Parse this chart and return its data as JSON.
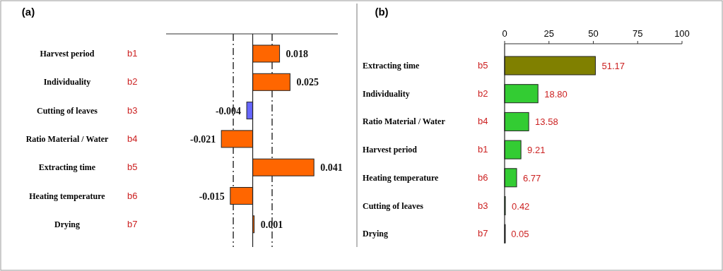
{
  "chart_data": [
    {
      "type": "bar",
      "orientation": "horizontal",
      "title": "(a)",
      "categories": [
        "Harvest period",
        "Individuality",
        "Cutting of leaves",
        "Ratio Material / Water",
        "Extracting time",
        "Heating temperature",
        "Drying"
      ],
      "values": [
        0.018,
        0.025,
        -0.004,
        -0.021,
        0.041,
        -0.015,
        0.001
      ],
      "colors": [
        "#ff6600",
        "#ff6600",
        "#6666ff",
        "#ff6600",
        "#ff6600",
        "#ff6600",
        "#ff6600"
      ],
      "data_labels": true,
      "xlim": [
        -0.058,
        0.057
      ],
      "ref_lines": [
        {
          "axis": "x",
          "value": -0.013,
          "line_style": "dashed",
          "color": "#333333"
        },
        {
          "axis": "x",
          "value": 0.013,
          "line_style": "dashed",
          "color": "#333333"
        }
      ],
      "annotations": [
        "b1",
        "b2",
        "b3",
        "b4",
        "b5",
        "b6",
        "b7"
      ]
    },
    {
      "type": "bar",
      "orientation": "horizontal",
      "title": "(b)",
      "categories": [
        "Extracting time",
        "Individuality",
        "Ratio Material / Water",
        "Harvest period",
        "Heating temperature",
        "Cutting of leaves",
        "Drying"
      ],
      "values": [
        51.17,
        18.8,
        13.58,
        9.21,
        6.77,
        0.42,
        0.05
      ],
      "value_labels": [
        "51.17",
        "18.80",
        "13.58",
        "9.21",
        "6.77",
        "0.42",
        "0.05"
      ],
      "colors": [
        "#808000",
        "#33cc33",
        "#33cc33",
        "#33cc33",
        "#33cc33",
        "#33cc33",
        "#33cc33"
      ],
      "xlim": [
        0,
        100
      ],
      "xticks": [
        0,
        25,
        50,
        75,
        100
      ],
      "annotations": [
        "b5",
        "b2",
        "b4",
        "b1",
        "b6",
        "b3",
        "b7"
      ]
    }
  ]
}
